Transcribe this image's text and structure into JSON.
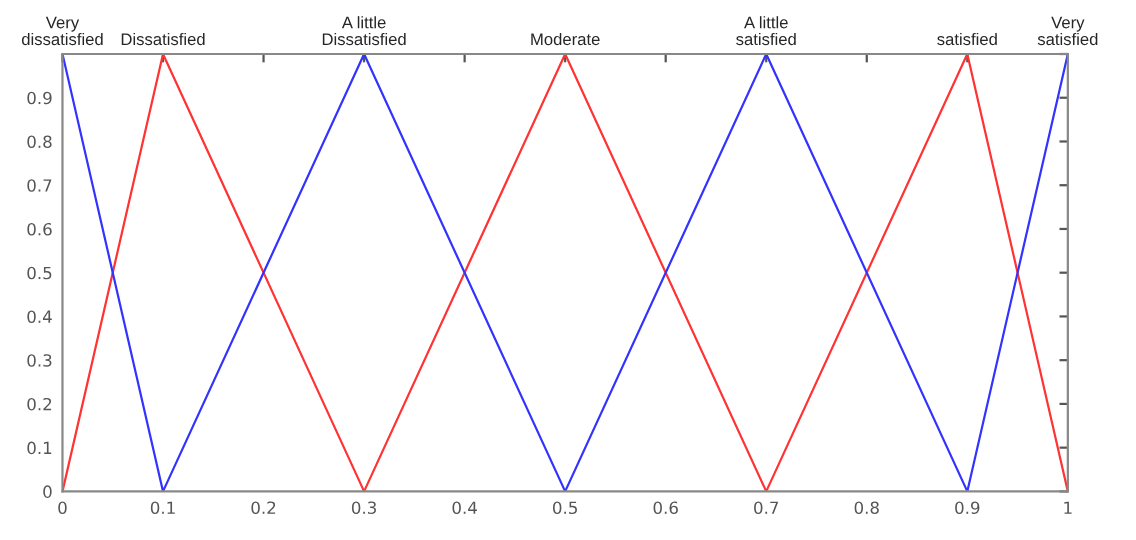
{
  "chart_data": {
    "type": "line",
    "x": [
      0,
      0.1,
      0.3,
      0.5,
      0.7,
      0.9,
      1
    ],
    "series": [
      {
        "color": "#ff3333",
        "values": [
          0,
          1,
          0,
          1,
          0,
          1,
          0
        ]
      },
      {
        "color": "#3333ff",
        "values": [
          1,
          0,
          1,
          0,
          1,
          0,
          1
        ]
      }
    ],
    "xlim": [
      0,
      1
    ],
    "xticks": [
      0,
      0.1,
      0.2,
      0.3,
      0.4,
      0.5,
      0.6,
      0.7,
      0.8,
      0.9,
      1
    ],
    "ylim": [
      0,
      1
    ],
    "yticks": [
      0,
      0.1,
      0.2,
      0.3,
      0.4,
      0.5,
      0.6,
      0.7,
      0.8,
      0.9,
      {
        "value": 1,
        "label": null
      }
    ],
    "grid": false,
    "legend": false,
    "marker": "none",
    "line_style": "solid",
    "annotations": [
      {
        "text": "Very\ndissatisfied",
        "x": 0,
        "y": 1
      },
      {
        "text": "Dissatisfied",
        "x": 0.1,
        "y": 1
      },
      {
        "text": "A little\nDissatisfied",
        "x": 0.3,
        "y": 1
      },
      {
        "text": "Moderate",
        "x": 0.5,
        "y": 1
      },
      {
        "text": "A little\nsatisfied",
        "x": 0.7,
        "y": 1
      },
      {
        "text": "satisfied",
        "x": 0.9,
        "y": 1
      },
      {
        "text": "Very\nsatisfied",
        "x": 1,
        "y": 1
      }
    ]
  }
}
